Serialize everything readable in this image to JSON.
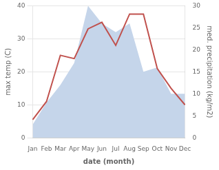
{
  "chart_data": {
    "type": "line",
    "categories": [
      "Jan",
      "Feb",
      "Mar",
      "Apr",
      "May",
      "Jun",
      "Jul",
      "Aug",
      "Sep",
      "Oct",
      "Nov",
      "Dec"
    ],
    "series": [
      {
        "type": "area",
        "color": "#c5d5ea",
        "axis": "y2",
        "values": [
          3,
          8,
          12,
          17,
          30,
          26,
          24,
          26,
          15,
          16,
          10,
          10
        ]
      },
      {
        "type": "line",
        "color": "#c0514d",
        "values": [
          5.5,
          11,
          25,
          24,
          33,
          35,
          28,
          37.5,
          37.5,
          21,
          15,
          10
        ]
      }
    ],
    "xlabel": "date (month)",
    "ylabel": "max temp (C)",
    "y2label": "med. precipitation (kg/m2)",
    "ylim": [
      0,
      40
    ],
    "yticks": [
      0,
      10,
      20,
      30,
      40
    ],
    "y2lim": [
      0,
      30
    ],
    "y2ticks": [
      0,
      5,
      10,
      15,
      20,
      25,
      30
    ],
    "grid": true
  }
}
